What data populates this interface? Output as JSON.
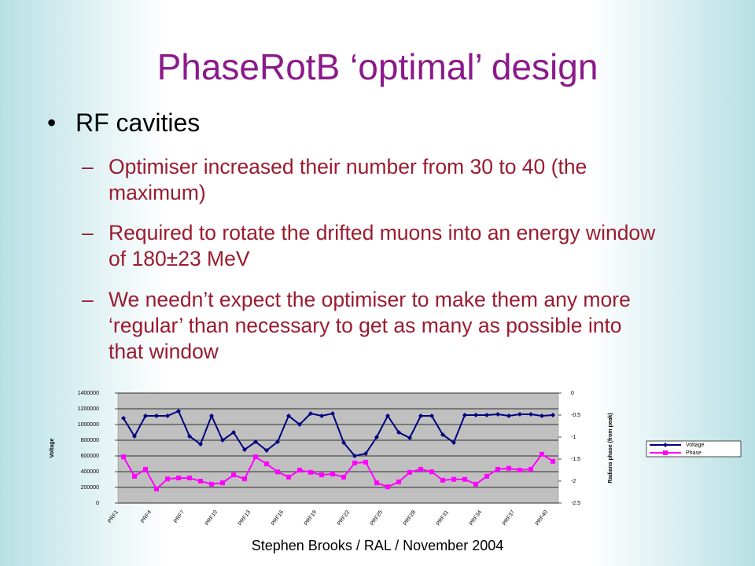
{
  "title": "PhaseRotB ‘optimal’ design",
  "bullets": [
    {
      "text": "RF cavities",
      "sub": [
        "Optimiser increased their number from 30 to 40 (the maximum)",
        "Required to rotate the drifted muons into an energy window of 180±23 MeV",
        "We needn’t expect the optimiser to make them any more ‘regular’ than necessary to get as many as possible into that window"
      ]
    }
  ],
  "footer": "Stephen Brooks / RAL / November 2004",
  "chart_data": {
    "type": "line",
    "ylabel": "Voltage",
    "y2label": "Radians phase (from peak)",
    "categories": [
      "PRF1",
      null,
      null,
      "PRF4",
      null,
      null,
      "PRF7",
      null,
      null,
      "PRF10",
      null,
      null,
      "PRF13",
      null,
      null,
      "PRF16",
      null,
      null,
      "PRF19",
      null,
      null,
      "PRF22",
      null,
      null,
      "PRF25",
      null,
      null,
      "PRF28",
      null,
      null,
      "PRF31",
      null,
      null,
      "PRF34",
      null,
      null,
      "PRF37",
      null,
      null,
      "PRF40"
    ],
    "ylim": [
      0,
      1400000
    ],
    "yticks": [
      0,
      200000,
      400000,
      600000,
      800000,
      1000000,
      1200000,
      1400000
    ],
    "y2lim": [
      -2.5,
      0
    ],
    "y2ticks": [
      0,
      -0.5,
      -1,
      -1.5,
      -2,
      -2.5
    ],
    "grid": true,
    "legend": "right",
    "series": [
      {
        "name": "Voltage",
        "color": "#000080",
        "values": [
          1080000,
          850000,
          1110000,
          1110000,
          1110000,
          1170000,
          850000,
          750000,
          1110000,
          800000,
          900000,
          680000,
          780000,
          670000,
          780000,
          1110000,
          1000000,
          1140000,
          1110000,
          1140000,
          770000,
          600000,
          630000,
          840000,
          1110000,
          900000,
          830000,
          1110000,
          1110000,
          870000,
          770000,
          1120000,
          1120000,
          1120000,
          1130000,
          1110000,
          1130000,
          1130000,
          1110000,
          1120000
        ]
      },
      {
        "name": "Phase",
        "color": "#ff00ff",
        "axis": "y2",
        "values": [
          -1.45,
          -1.89,
          -1.73,
          -2.18,
          -1.95,
          -1.93,
          -1.93,
          -2.0,
          -2.07,
          -2.04,
          -1.86,
          -1.95,
          -1.45,
          -1.61,
          -1.79,
          -1.91,
          -1.75,
          -1.8,
          -1.86,
          -1.84,
          -1.91,
          -1.59,
          -1.57,
          -2.04,
          -2.13,
          -2.02,
          -1.8,
          -1.73,
          -1.79,
          -1.98,
          -1.96,
          -1.96,
          -2.07,
          -1.89,
          -1.73,
          -1.71,
          -1.75,
          -1.73,
          -1.39,
          -1.55
        ]
      }
    ]
  }
}
